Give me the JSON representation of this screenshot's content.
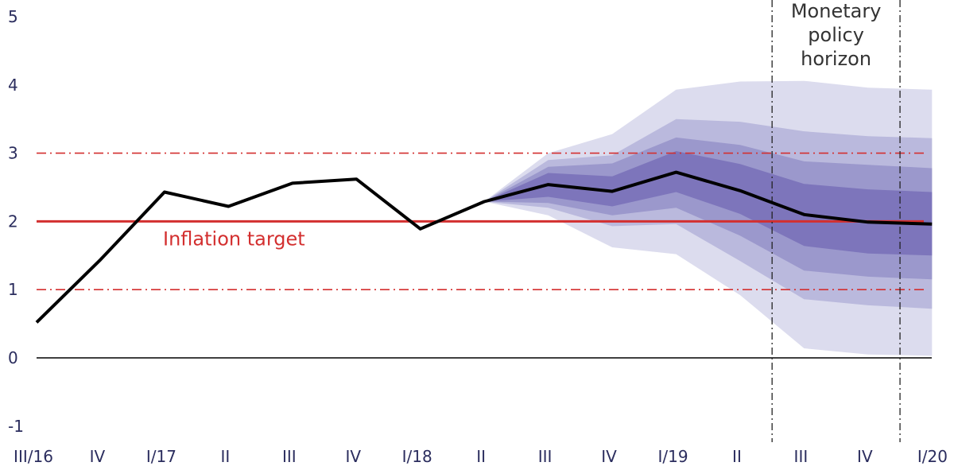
{
  "chart_data": {
    "type": "line",
    "title": "",
    "xlabel": "",
    "ylabel": "",
    "ylim": [
      -1,
      5
    ],
    "yticks": [
      -1,
      0,
      1,
      2,
      3,
      4,
      5
    ],
    "x_categories": [
      "III/16",
      "IV",
      "I/17",
      "II",
      "III",
      "IV",
      "I/18",
      "II",
      "III",
      "IV",
      "I/19",
      "II",
      "III",
      "IV",
      "I/20"
    ],
    "grid": false,
    "series": [
      {
        "values": [
          0.52,
          1.44,
          2.43,
          2.22,
          2.56,
          2.62,
          1.89,
          2.29,
          2.54,
          2.44,
          2.72,
          2.45,
          2.1,
          1.99,
          1.96
        ],
        "color": "#000000"
      }
    ],
    "fan_chart": {
      "start_index": 7,
      "colors": [
        "#dcdcee",
        "#bab9dd",
        "#9b98cc",
        "#7d75bb"
      ],
      "bands": [
        {
          "lower": [
            2.29,
            2.09,
            1.62,
            1.52,
            0.92,
            0.14,
            0.05,
            0.03
          ],
          "upper": [
            2.29,
            3.0,
            3.28,
            3.93,
            4.05,
            4.06,
            3.96,
            3.93
          ]
        },
        {
          "lower": [
            2.29,
            2.2,
            1.93,
            1.96,
            1.42,
            0.86,
            0.77,
            0.72
          ],
          "upper": [
            2.29,
            2.9,
            2.97,
            3.5,
            3.46,
            3.32,
            3.25,
            3.22
          ]
        },
        {
          "lower": [
            2.29,
            2.27,
            2.09,
            2.2,
            1.79,
            1.28,
            1.19,
            1.15
          ],
          "upper": [
            2.29,
            2.8,
            2.85,
            3.23,
            3.12,
            2.88,
            2.83,
            2.78
          ]
        },
        {
          "lower": [
            2.29,
            2.36,
            2.22,
            2.43,
            2.11,
            1.64,
            1.53,
            1.5
          ],
          "upper": [
            2.29,
            2.71,
            2.66,
            3.03,
            2.84,
            2.55,
            2.47,
            2.43
          ]
        }
      ]
    },
    "inflation_target": {
      "value": 2,
      "band": [
        1,
        3
      ],
      "label": "Inflation target",
      "color": "#d32f2f"
    },
    "monetary_policy_horizon": {
      "from_index": 11.5,
      "to_index": 13.5,
      "label_lines": [
        "Monetary",
        "policy",
        "horizon"
      ]
    }
  }
}
